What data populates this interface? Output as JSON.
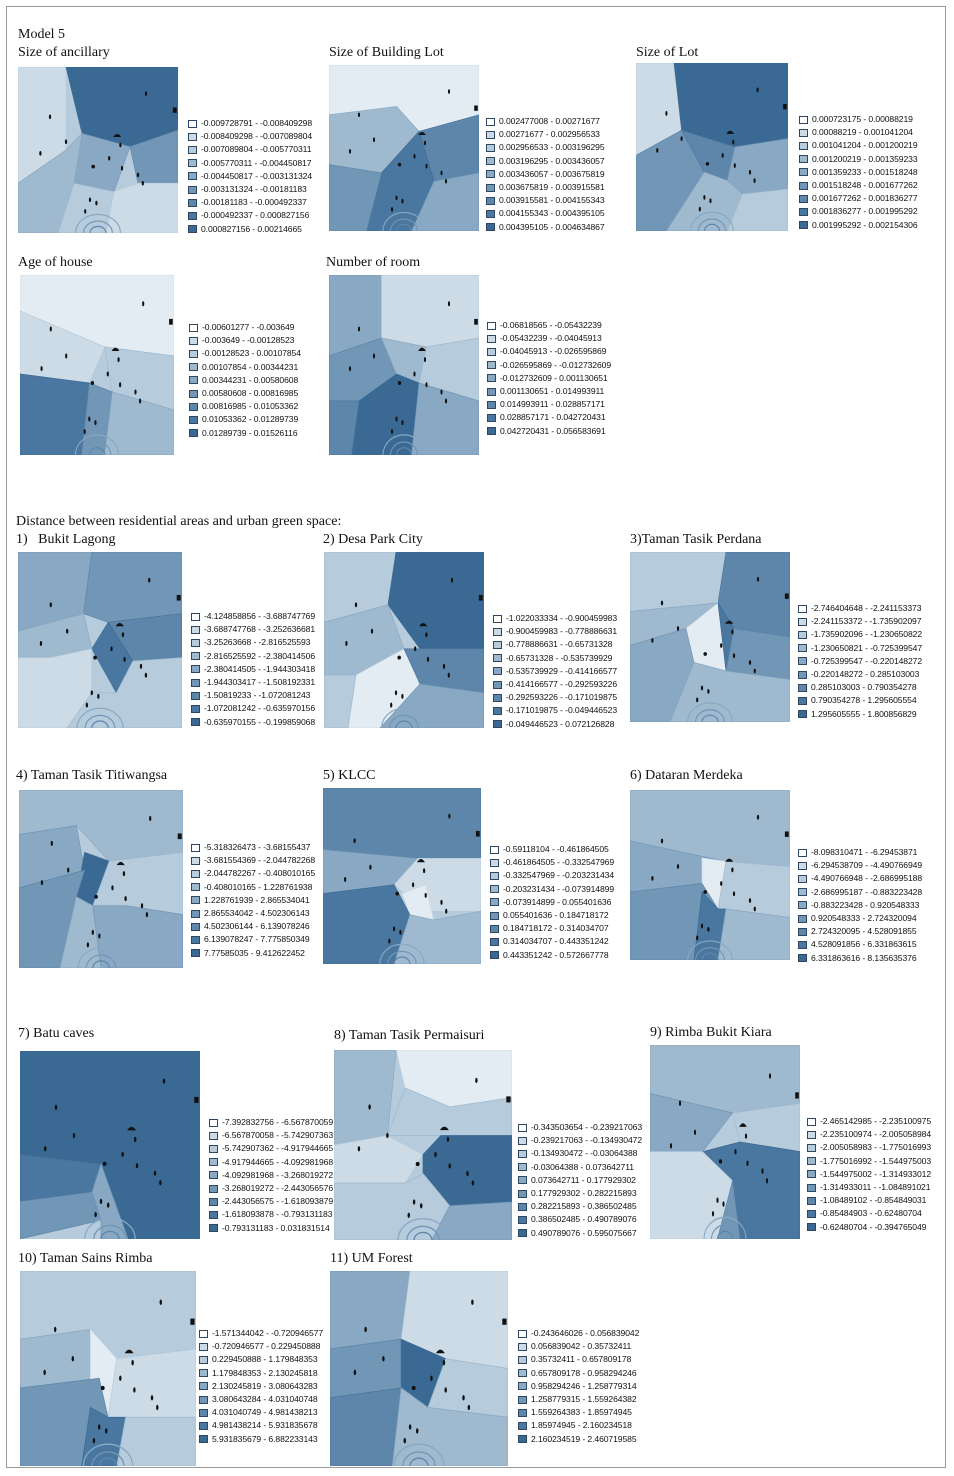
{
  "header": {
    "model_label": "Model 5",
    "section2_title": "Distance between residential areas and urban green space:"
  },
  "palette": [
    "#e3ecf2",
    "#cddbe6",
    "#b6cbdb",
    "#9fb9cf",
    "#88a8c3",
    "#7196b6",
    "#5d86aa",
    "#4a779f",
    "#3a6a94"
  ],
  "panels": [
    {
      "title": "Size of ancillary",
      "pattern": 0,
      "legend": [
        "-0.009728791 - -0.008409298",
        "-0.008409298 - -0.007089804",
        "-0.007089804 - -0.005770311",
        "-0.005770311 - -0.004450817",
        "-0.004450817 - -0.003131324",
        "-0.003131324 - -0.00181183",
        "-0.00181183 - -0.000492337",
        "-0.000492337 - 0.000827156",
        "0.000827156 - 0.00214665"
      ]
    },
    {
      "title": "Size of Building Lot",
      "pattern": 1,
      "legend": [
        "0.002477008 - 0.00271677",
        "0.00271677 - 0.002956533",
        "0.002956533 - 0.003196295",
        "0.003196295 - 0.003436057",
        "0.003436057 - 0.003675819",
        "0.003675819 - 0.003915581",
        "0.003915581 - 0.004155343",
        "0.004155343 - 0.004395105",
        "0.004395105 - 0.004634867"
      ]
    },
    {
      "title": "Size of Lot",
      "pattern": 2,
      "legend": [
        "0.000723175 - 0.00088219",
        "0.00088219 - 0.001041204",
        "0.001041204 - 0.001200219",
        "0.001200219 - 0.001359233",
        "0.001359233 - 0.001518248",
        "0.001518248 - 0.001677262",
        "0.001677262 - 0.001836277",
        "0.001836277 - 0.001995292",
        "0.001995292 - 0.002154306"
      ]
    },
    {
      "title": "Age of house",
      "pattern": 3,
      "legend": [
        "-0.00601277 - -0.003649",
        "-0.003649 - -0.00128523",
        "-0.00128523 - 0.00107854",
        "0.00107854 - 0.00344231",
        "0.00344231 - 0.00580608",
        "0.00580608 - 0.00816985",
        "0.00816985 - 0.01053362",
        "0.01053362 - 0.01289739",
        "0.01289739 - 0.01526116"
      ]
    },
    {
      "title": "Number of room",
      "pattern": 4,
      "legend": [
        "-0.06818565 - -0.05432239",
        "-0.05432239 - -0.04045913",
        "-0.04045913 - -0.026595869",
        "-0.026595869 - -0.012732609",
        "-0.012732609 - 0.001130651",
        "0.001130651 - 0.014993911",
        "0.014993911 - 0.028857171",
        "0.028857171 - 0.042720431",
        "0.042720431 - 0.056583691"
      ]
    },
    {
      "title": "1)   Bukit Lagong",
      "pattern": 5,
      "legend": [
        "-4.124858856 - -3.688747769",
        "-3.688747768 - -3.252636681",
        "-3.25263668 - -2.816525593",
        "-2.816525592 - -2.380414506",
        "-2.380414505 - -1.944303418",
        "-1.944303417 - -1.508192331",
        "-1.50819233 - -1.072081243",
        "-1.072081242 - -0.635970156",
        "-0.635970155 - -0.199859068"
      ]
    },
    {
      "title": "2) Desa Park City",
      "pattern": 6,
      "legend": [
        "-1.022033334 - -0.900459983",
        "-0.900459983 - -0.778886631",
        "-0.778886631 - -0.65731328",
        "-0.65731328 - -0.535739929",
        "-0.535739929 - -0.414166577",
        "-0.414166577 - -0.292593226",
        "-0.292593226 - -0.171019875",
        "-0.171019875 - -0.049446523",
        "-0.049446523 - 0.072126828"
      ]
    },
    {
      "title": "3)Taman Tasik Perdana",
      "pattern": 7,
      "legend": [
        "-2.746404648 - -2.241153373",
        "-2.241153372 - -1.735902097",
        "-1.735902096 - -1.230650822",
        "-1.230650821 - -0.725399547",
        "-0.725399547 - -0.220148272",
        "-0.220148272 - 0.285103003",
        "0.285103003 - 0.790354278",
        "0.790354278 - 1.295605554",
        "1.295605555 - 1.800856829"
      ]
    },
    {
      "title": "4) Taman Tasik Titiwangsa",
      "pattern": 8,
      "legend": [
        "-5.318326473 - -3.68155437",
        "-3.681554369 - -2.044782268",
        "-2.044782267 - -0.408010165",
        "-0.408010165 - 1.228761938",
        "1.228761939 - 2.865534041",
        "2.865534042 - 4.502306143",
        "4.502306144 - 6.139078246",
        "6.139078247 - 7.775850349",
        "7.77585035 - 9.412622452"
      ]
    },
    {
      "title": "5) KLCC",
      "pattern": 9,
      "legend": [
        "-0.59118104 - -0.461864505",
        "-0.461864505 - -0.332547969",
        "-0.332547969 - -0.203231434",
        "-0.203231434 - -0.073914899",
        "-0.073914899 - 0.055401636",
        "0.055401636 - 0.184718172",
        "0.184718172 - 0.314034707",
        "0.314034707 - 0.443351242",
        "0.443351242 - 0.572667778"
      ]
    },
    {
      "title": "6) Dataran Merdeka",
      "pattern": 10,
      "legend": [
        "-8.098310471 - -6.29453871",
        "-6.294538709 - -4.490766949",
        "-4.490766948 - -2.686995188",
        "-2.686995187 - -0.883223428",
        "-0.883223428 - 0.920548333",
        "0.920548333 - 2.724320094",
        "2.724320095 - 4.528091855",
        "4.528091856 - 6.331863615",
        "6.331863616 - 8.135635376"
      ]
    },
    {
      "title": "7) Batu caves",
      "pattern": 11,
      "legend": [
        "-7.392832756 - -6.567870059",
        "-6.567870058 - -5.742907363",
        "-5.742907362 - -4.917944665",
        "-4.917944665 - -4.092981968",
        "-4.092981968 - -3.268019272",
        "-3.268019272 - -2.443056576",
        "-2.443056575 - -1.618093879",
        "-1.618093878 - -0.793131183",
        "-0.793131183 - 0.031831514"
      ]
    },
    {
      "title": "8) Taman Tasik Permaisuri",
      "pattern": 12,
      "legend": [
        "-0.343503654 - -0.239217063",
        "-0.239217063 - -0.134930472",
        "-0.134930472 - -0.03064388",
        "-0.03064388 - 0.073642711",
        "0.073642711 - 0.177929302",
        "0.177929302 - 0.282215893",
        "0.282215893 - 0.386502485",
        "0.386502485 - 0.490789076",
        "0.490789076 - 0.595075667"
      ]
    },
    {
      "title": "9) Rimba Bukit Kiara",
      "pattern": 13,
      "legend": [
        "-2.465142985 - -2.235100975",
        "-2.235100974 - -2.005058984",
        "-2.005058983 - -1.775016993",
        "-1.775016992 - -1.544975003",
        "-1.544975002 - -1.314933012",
        "-1.314933011 - -1.084891021",
        "-1.08489102 - -0.854849031",
        "-0.85484903 - -0.62480704",
        "-0.62480704 - -0.394765049"
      ]
    },
    {
      "title": "10) Taman Sains Rimba",
      "pattern": 14,
      "legend": [
        "-1.571344042 - -0.720946577",
        "-0.720946577 - 0.229450888",
        "0.229450888 - 1.179848353",
        "1.179848353 - 2.130245818",
        "2.130245819 - 3.080643283",
        "3.080643284 - 4.031040748",
        "4.031040749 - 4.981438213",
        "4.981438214 - 5.931835678",
        "5.931835679 - 6.882233143"
      ]
    },
    {
      "title": "11) UM Forest",
      "pattern": 15,
      "legend": [
        "-0.243646026 - 0.056839042",
        "0.056839042 - 0.35732411",
        "0.35732411 - 0.657809178",
        "0.657809178 - 0.958294246",
        "0.958294246 - 1.258779314",
        "1.258779315 - 1.559264382",
        "1.559264383 - 1.85974945",
        "1.85974945 - 2.160234518",
        "2.160234519 - 2.460719585"
      ]
    }
  ]
}
